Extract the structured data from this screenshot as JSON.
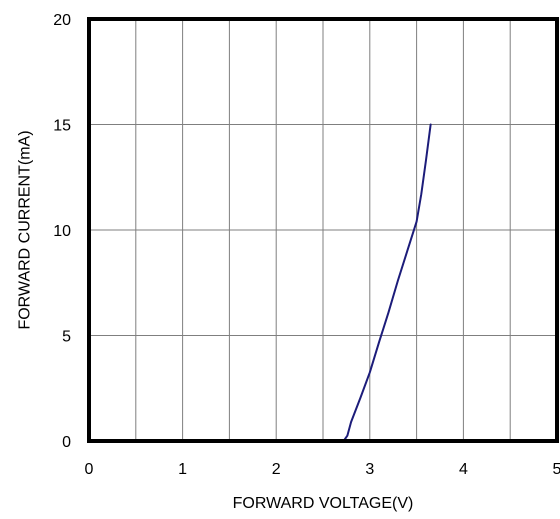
{
  "chart_data": {
    "type": "line",
    "title": "",
    "xlabel": "FORWARD VOLTAGE(V)",
    "ylabel": "FORWARD CURRENT(mA)",
    "xlim": [
      0,
      5
    ],
    "ylim": [
      0,
      20
    ],
    "x_ticks": [
      "0",
      "1",
      "2",
      "3",
      "4",
      "5"
    ],
    "y_ticks": [
      "0",
      "5",
      "10",
      "15",
      "20"
    ],
    "x_grid_step": 0.5,
    "y_grid_step": 5,
    "grid": true,
    "legend": "none",
    "series": [
      {
        "color": "#1c1c7a",
        "x": [
          0,
          2.5,
          2.72,
          2.76,
          2.8,
          2.9,
          3.0,
          3.1,
          3.2,
          3.3,
          3.4,
          3.5,
          3.55,
          3.6,
          3.65
        ],
        "y": [
          0,
          0,
          0,
          0.25,
          0.9,
          2.05,
          3.25,
          4.7,
          6.1,
          7.6,
          9.0,
          10.4,
          11.7,
          13.3,
          15.0
        ]
      }
    ]
  }
}
